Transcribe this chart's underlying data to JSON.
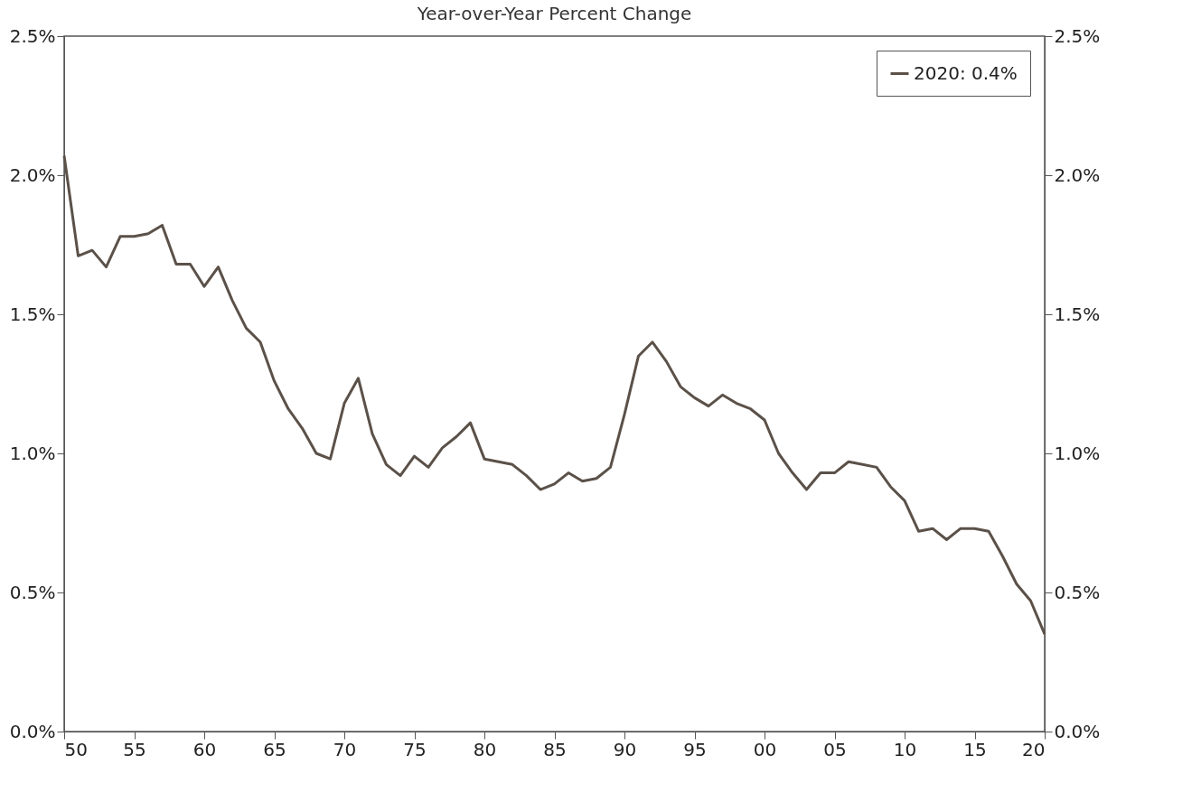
{
  "chart_data": {
    "type": "line",
    "title": "Year-over-Year Percent Change",
    "x": [
      1950,
      1951,
      1952,
      1953,
      1954,
      1955,
      1956,
      1957,
      1958,
      1959,
      1960,
      1961,
      1962,
      1963,
      1964,
      1965,
      1966,
      1967,
      1968,
      1969,
      1970,
      1971,
      1972,
      1973,
      1974,
      1975,
      1976,
      1977,
      1978,
      1979,
      1980,
      1981,
      1982,
      1983,
      1984,
      1985,
      1986,
      1987,
      1988,
      1989,
      1990,
      1991,
      1992,
      1993,
      1994,
      1995,
      1996,
      1997,
      1998,
      1999,
      2000,
      2001,
      2002,
      2003,
      2004,
      2005,
      2006,
      2007,
      2008,
      2009,
      2010,
      2011,
      2012,
      2013,
      2014,
      2015,
      2016,
      2017,
      2018,
      2019,
      2020
    ],
    "series": [
      {
        "name": "2020: 0.4%",
        "color": "#5b5149",
        "values": [
          2.07,
          1.71,
          1.73,
          1.67,
          1.78,
          1.78,
          1.79,
          1.82,
          1.68,
          1.68,
          1.6,
          1.67,
          1.55,
          1.45,
          1.4,
          1.26,
          1.16,
          1.09,
          1.0,
          0.98,
          1.18,
          1.27,
          1.07,
          0.96,
          0.92,
          0.99,
          0.95,
          1.02,
          1.06,
          1.11,
          0.98,
          0.97,
          0.96,
          0.92,
          0.87,
          0.89,
          0.93,
          0.9,
          0.91,
          0.95,
          1.14,
          1.35,
          1.4,
          1.33,
          1.24,
          1.2,
          1.17,
          1.21,
          1.18,
          1.16,
          1.12,
          1.0,
          0.93,
          0.87,
          0.93,
          0.93,
          0.97,
          0.96,
          0.95,
          0.88,
          0.83,
          0.72,
          0.73,
          0.69,
          0.73,
          0.73,
          0.72,
          0.63,
          0.53,
          0.47,
          0.35
        ]
      }
    ],
    "xlim": [
      1950,
      2020
    ],
    "xticks": [
      {
        "value": 1950,
        "label": "50"
      },
      {
        "value": 1955,
        "label": "55"
      },
      {
        "value": 1960,
        "label": "60"
      },
      {
        "value": 1965,
        "label": "65"
      },
      {
        "value": 1970,
        "label": "70"
      },
      {
        "value": 1975,
        "label": "75"
      },
      {
        "value": 1980,
        "label": "80"
      },
      {
        "value": 1985,
        "label": "85"
      },
      {
        "value": 1990,
        "label": "90"
      },
      {
        "value": 1995,
        "label": "95"
      },
      {
        "value": 2000,
        "label": "00"
      },
      {
        "value": 2005,
        "label": "05"
      },
      {
        "value": 2010,
        "label": "10"
      },
      {
        "value": 2015,
        "label": "15"
      },
      {
        "value": 2020,
        "label": "20"
      }
    ],
    "ylim": [
      0,
      2.5
    ],
    "yticks": [
      {
        "value": 0,
        "label": "0.0%"
      },
      {
        "value": 0.5,
        "label": "0.5%"
      },
      {
        "value": 1,
        "label": "1.0%"
      },
      {
        "value": 1.5,
        "label": "1.5%"
      },
      {
        "value": 2,
        "label": "2.0%"
      },
      {
        "value": 2.5,
        "label": "2.5%"
      }
    ],
    "y2lim": [
      0,
      2.5
    ],
    "y2ticks": [
      {
        "value": 0,
        "label": "0.0%"
      },
      {
        "value": 0.5,
        "label": "0.5%"
      },
      {
        "value": 1,
        "label": "1.0%"
      },
      {
        "value": 1.5,
        "label": "1.5%"
      },
      {
        "value": 2,
        "label": "2.0%"
      },
      {
        "value": 2.5,
        "label": "2.5%"
      }
    ],
    "legend": "top right",
    "grid": false,
    "marker": "none",
    "line_style": "solid"
  }
}
